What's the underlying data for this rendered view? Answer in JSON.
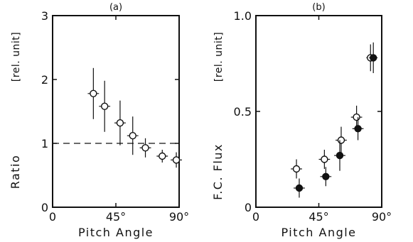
{
  "chart_data": [
    {
      "panel_label": "(a)",
      "type": "scatter",
      "xlabel": "Pitch Angle",
      "ylabel": "Ratio",
      "yunit": "[rel. unit]",
      "xlim": [
        0,
        90
      ],
      "ylim": [
        0,
        3
      ],
      "x_ticks": [
        {
          "value": 0,
          "label": "0"
        },
        {
          "value": 45,
          "label": "45°"
        },
        {
          "value": 90,
          "label": "90°"
        }
      ],
      "y_ticks": [
        {
          "value": 0,
          "label": "0"
        },
        {
          "value": 1,
          "label": "1"
        },
        {
          "value": 2,
          "label": "2"
        },
        {
          "value": 3,
          "label": "3"
        }
      ],
      "reference_line": {
        "y": 1,
        "style": "dashed"
      },
      "series": [
        {
          "marker": "open-circle",
          "points": [
            {
              "x": 29,
              "y": 1.78,
              "xerr": 4,
              "yerr": 0.4
            },
            {
              "x": 37,
              "y": 1.58,
              "xerr": 4,
              "yerr": 0.4
            },
            {
              "x": 48,
              "y": 1.32,
              "xerr": 4,
              "yerr": 0.35
            },
            {
              "x": 57,
              "y": 1.12,
              "xerr": 4,
              "yerr": 0.3
            },
            {
              "x": 66,
              "y": 0.93,
              "xerr": 4,
              "yerr": 0.15
            },
            {
              "x": 78,
              "y": 0.8,
              "xerr": 4,
              "yerr": 0.1
            },
            {
              "x": 88,
              "y": 0.74,
              "xerr": 4,
              "yerr": 0.12
            }
          ]
        }
      ]
    },
    {
      "panel_label": "(b)",
      "type": "scatter",
      "xlabel": "Pitch Angle",
      "ylabel": "F.C. Flux",
      "yunit": "[rel. unit]",
      "xlim": [
        0,
        90
      ],
      "ylim": [
        0,
        1.0
      ],
      "x_ticks": [
        {
          "value": 0,
          "label": "0"
        },
        {
          "value": 45,
          "label": "45°"
        },
        {
          "value": 90,
          "label": "90°"
        }
      ],
      "y_ticks": [
        {
          "value": 0,
          "label": "0"
        },
        {
          "value": 0.5,
          "label": "0.5"
        },
        {
          "value": 1.0,
          "label": "1.0"
        }
      ],
      "series": [
        {
          "marker": "open-circle",
          "points": [
            {
              "x": 29,
              "y": 0.2,
              "xerr": 4,
              "yerr": 0.05
            },
            {
              "x": 49,
              "y": 0.25,
              "xerr": 4,
              "yerr": 0.05
            },
            {
              "x": 61,
              "y": 0.35,
              "xerr": 4,
              "yerr": 0.07
            },
            {
              "x": 72,
              "y": 0.47,
              "xerr": 4,
              "yerr": 0.06
            },
            {
              "x": 82,
              "y": 0.78,
              "xerr": 3,
              "yerr": 0.07
            }
          ]
        },
        {
          "marker": "filled-circle",
          "points": [
            {
              "x": 31,
              "y": 0.1,
              "xerr": 4,
              "yerr": 0.05
            },
            {
              "x": 50,
              "y": 0.16,
              "xerr": 4,
              "yerr": 0.05
            },
            {
              "x": 60,
              "y": 0.27,
              "xerr": 4,
              "yerr": 0.08
            },
            {
              "x": 73,
              "y": 0.41,
              "xerr": 4,
              "yerr": 0.06
            },
            {
              "x": 84,
              "y": 0.78,
              "xerr": 3,
              "yerr": 0.08
            }
          ]
        }
      ]
    }
  ]
}
